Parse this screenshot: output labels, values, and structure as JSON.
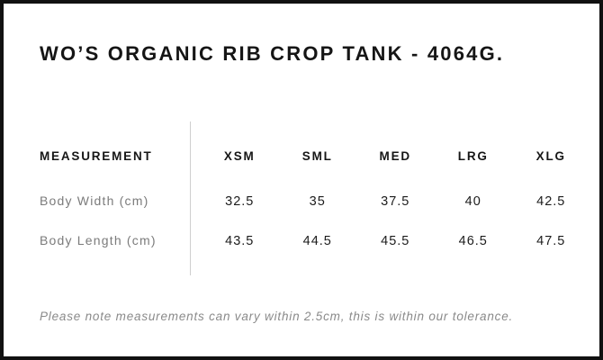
{
  "page": {
    "title": "WO’S ORGANIC RIB CROP TANK - 4064G.",
    "note": "Please note measurements can vary within 2.5cm, this is within our tolerance."
  },
  "table": {
    "measurement_header": "MEASUREMENT",
    "size_headers": [
      "XSM",
      "SML",
      "MED",
      "LRG",
      "XLG"
    ],
    "rows": [
      {
        "label": "Body Width (cm)",
        "values": [
          "32.5",
          "35",
          "37.5",
          "40",
          "42.5"
        ]
      },
      {
        "label": "Body Length (cm)",
        "values": [
          "43.5",
          "44.5",
          "45.5",
          "46.5",
          "47.5"
        ]
      }
    ]
  },
  "colors": {
    "frame_border": "#111111",
    "heading_text": "#151515",
    "label_text": "#7b7b7b",
    "value_text": "#1c1c1c",
    "note_text": "#8a8a8a",
    "divider": "#cfcfcf",
    "background": "#ffffff"
  }
}
